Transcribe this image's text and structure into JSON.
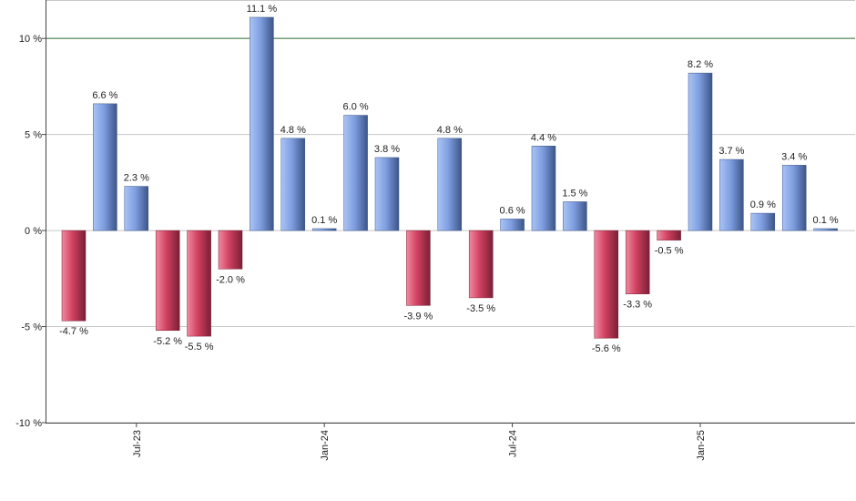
{
  "chart_data": {
    "type": "bar",
    "title": "",
    "xlabel": "",
    "ylabel": "",
    "ylim": [
      -10,
      12
    ],
    "y_ticks": [
      -10,
      -5,
      0,
      5,
      10
    ],
    "y_tick_suffix": " %",
    "grid": true,
    "legend": "none",
    "reference_line": {
      "y": 10,
      "color": "#2e6b2e"
    },
    "x_tick_labels": [
      {
        "label": "Jul-23",
        "index": 2
      },
      {
        "label": "Jan-24",
        "index": 8
      },
      {
        "label": "Jul-24",
        "index": 14
      },
      {
        "label": "Jan-25",
        "index": 20
      }
    ],
    "values": [
      -4.7,
      6.6,
      2.3,
      -5.2,
      -5.5,
      -2.0,
      11.1,
      4.8,
      0.1,
      6.0,
      3.8,
      -3.9,
      4.8,
      -3.5,
      0.6,
      4.4,
      1.5,
      -5.6,
      -3.3,
      -0.5,
      8.2,
      3.7,
      0.9,
      3.4,
      0.1
    ],
    "data_labels": [
      "-4.7 %",
      "6.6 %",
      "2.3 %",
      "-5.2 %",
      "-5.5 %",
      "-2.0 %",
      "11.1 %",
      "4.8 %",
      "0.1 %",
      "6.0 %",
      "3.8 %",
      "-3.9 %",
      "4.8 %",
      "-3.5 %",
      "0.6 %",
      "4.4 %",
      "1.5 %",
      "-5.6 %",
      "-3.3 %",
      "-0.5 %",
      "8.2 %",
      "3.7 %",
      "0.9 %",
      "3.4 %",
      "0.1 %"
    ],
    "colors": {
      "positive": "#7f9ee0",
      "negative": "#d04060",
      "grid": "#c8c8c8",
      "axis": "#444444"
    }
  }
}
